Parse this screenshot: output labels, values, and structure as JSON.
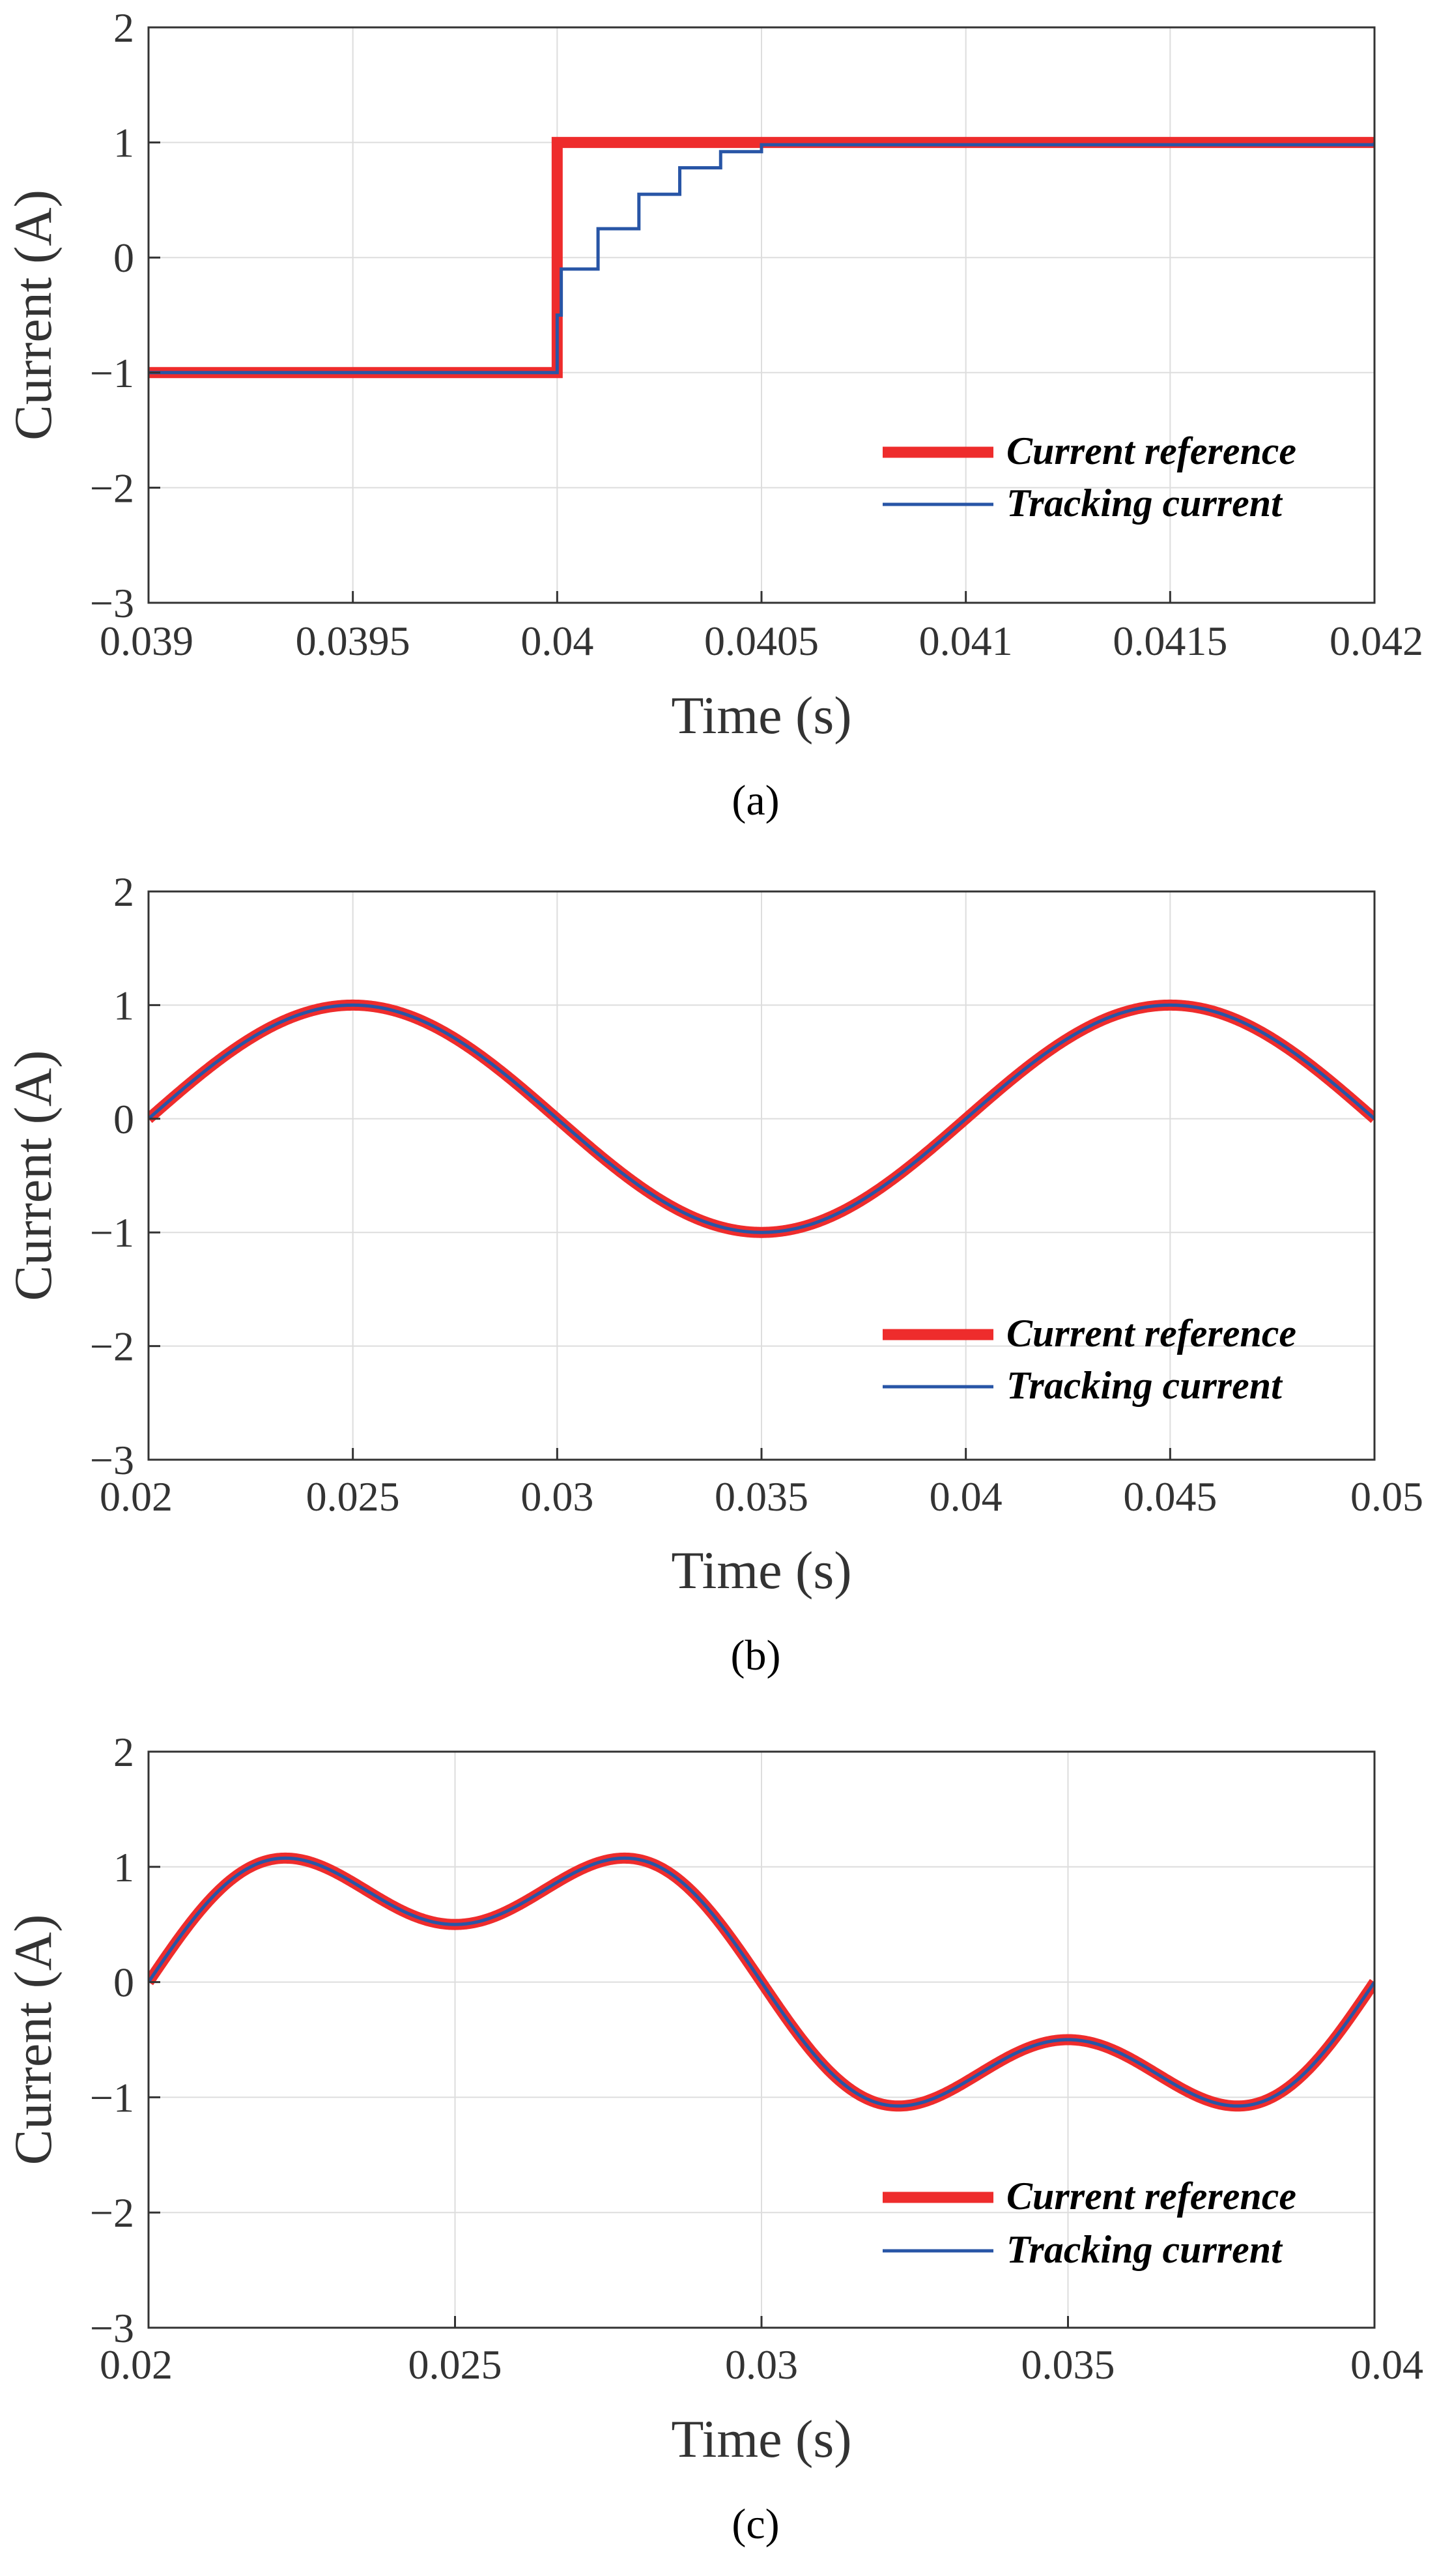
{
  "colors": {
    "reference": "#ee2c2c",
    "tracking": "#2855a6",
    "grid": "#dddddd",
    "frame": "#333333"
  },
  "chart_data": [
    {
      "id": "a",
      "type": "line",
      "caption": "(a)",
      "xlabel": "Time (s)",
      "ylabel": "Current (A)",
      "xlim": [
        0.039,
        0.042
      ],
      "ylim": [
        -3,
        2
      ],
      "xticks": [
        0.039,
        0.0395,
        0.04,
        0.0405,
        0.041,
        0.0415,
        0.042
      ],
      "xtick_labels": [
        "0.039",
        "0.0395",
        "0.04",
        "0.0405",
        "0.041",
        "0.0415",
        "0.042"
      ],
      "yticks": [
        -3,
        -2,
        -1,
        0,
        1,
        2
      ],
      "ytick_labels": [
        "−3",
        "−2",
        "−1",
        "0",
        "1",
        "2"
      ],
      "grid": true,
      "legend_position": "bottom-right",
      "series": [
        {
          "name": "Current reference",
          "style": "thick",
          "x": [
            0.039,
            0.04,
            0.04,
            0.042
          ],
          "y": [
            -1,
            -1,
            1,
            1
          ]
        },
        {
          "name": "Tracking current",
          "style": "thin",
          "step": true,
          "x": [
            0.039,
            0.04,
            0.04001,
            0.0401,
            0.0402,
            0.0403,
            0.0404,
            0.0405,
            0.042
          ],
          "y": [
            -1,
            -0.5,
            -0.1,
            0.25,
            0.55,
            0.78,
            0.92,
            0.98,
            1
          ]
        }
      ]
    },
    {
      "id": "b",
      "type": "line",
      "caption": "(b)",
      "xlabel": "Time (s)",
      "ylabel": "Current (A)",
      "xlim": [
        0.02,
        0.05
      ],
      "ylim": [
        -3,
        2
      ],
      "xticks": [
        0.02,
        0.025,
        0.03,
        0.035,
        0.04,
        0.045,
        0.05
      ],
      "xtick_labels": [
        "0.02",
        "0.025",
        "0.03",
        "0.035",
        "0.04",
        "0.045",
        "0.05"
      ],
      "yticks": [
        -3,
        -2,
        -1,
        0,
        1,
        2
      ],
      "ytick_labels": [
        "−3",
        "−2",
        "−1",
        "0",
        "1",
        "2"
      ],
      "grid": true,
      "legend_position": "bottom-right",
      "signal": {
        "kind": "sine",
        "amplitude": 1,
        "frequency_hz": 50
      },
      "series": [
        {
          "name": "Current reference",
          "style": "thick"
        },
        {
          "name": "Tracking current",
          "style": "thin"
        }
      ]
    },
    {
      "id": "c",
      "type": "line",
      "caption": "(c)",
      "xlabel": "Time (s)",
      "ylabel": "Current (A)",
      "xlim": [
        0.02,
        0.04
      ],
      "ylim": [
        -3,
        2
      ],
      "xticks": [
        0.02,
        0.025,
        0.03,
        0.035,
        0.04
      ],
      "xtick_labels": [
        "0.02",
        "0.025",
        "0.03",
        "0.035",
        "0.04"
      ],
      "yticks": [
        -3,
        -2,
        -1,
        0,
        1,
        2
      ],
      "ytick_labels": [
        "−3",
        "−2",
        "−1",
        "0",
        "1",
        "2"
      ],
      "grid": true,
      "legend_position": "bottom-right",
      "signal": {
        "kind": "harmonic",
        "fundamental_hz": 50,
        "a1": 1,
        "a3": 0.5
      },
      "series": [
        {
          "name": "Current reference",
          "style": "thick"
        },
        {
          "name": "Tracking current",
          "style": "thin"
        }
      ]
    }
  ]
}
